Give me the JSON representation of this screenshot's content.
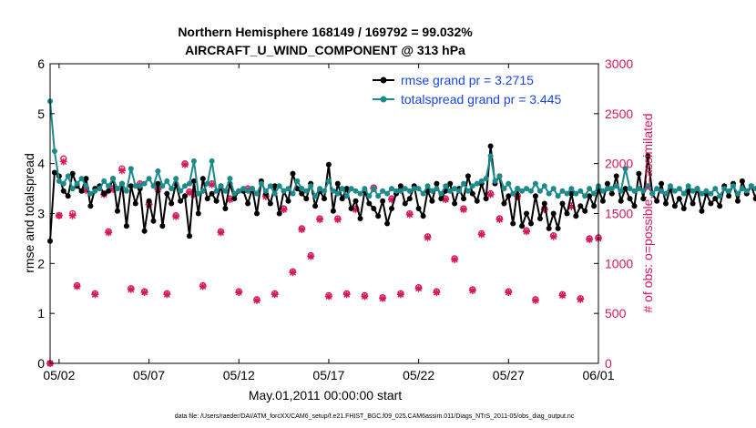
{
  "chart_data": {
    "type": "line",
    "title_line1": "Northern Hemisphere 168149 / 169792 = 99.032%",
    "title_line2": "AIRCRAFT_U_WIND_COMPONENT @ 313 hPa",
    "xlabel": "May.01,2011 00:00:00 start",
    "ylabel_left": "rmse and totalspread",
    "ylabel_right": "# of obs: o=possible; ×=assimilated",
    "footnote": "data file: /Users/raeder/DAI/ATM_forcXX/CAM6_setup/f.e21.FHIST_BGC.f09_025.CAM6assim.011/Diags_NTrS_2011-05/obs_diag_output.nc",
    "x_ticks": [
      "05/02",
      "05/07",
      "05/12",
      "05/17",
      "05/22",
      "05/27",
      "06/01"
    ],
    "x_tick_days": [
      1,
      6,
      11,
      16,
      21,
      26,
      31
    ],
    "xlim_days": [
      0.5,
      31.0
    ],
    "ylim_left": [
      0,
      6
    ],
    "yticks_left": [
      "0",
      "1",
      "2",
      "3",
      "4",
      "5",
      "6"
    ],
    "ylim_right": [
      0,
      3000
    ],
    "yticks_right": [
      "0",
      "500",
      "1000",
      "1500",
      "2000",
      "2500",
      "3000"
    ],
    "step_days": 0.25,
    "legend_position": "top-right",
    "colors": {
      "rmse": "#000000",
      "spread": "#1b8a8a",
      "obs": "#d6185b",
      "legend_text": "#1746e0"
    },
    "series": [
      {
        "name": "rmse grand pr = 3.2715",
        "values": [
          2.45,
          3.82,
          3.75,
          3.45,
          3.35,
          3.8,
          3.55,
          3.45,
          3.7,
          3.15,
          3.5,
          3.55,
          3.4,
          3.45,
          3.7,
          3.05,
          3.6,
          2.75,
          3.55,
          3.2,
          3.5,
          2.65,
          3.25,
          2.85,
          3.6,
          2.75,
          3.4,
          3.2,
          3.6,
          3.25,
          3.35,
          2.55,
          3.65,
          3.0,
          3.7,
          3.3,
          3.4,
          3.25,
          3.55,
          3.1,
          3.6,
          3.3,
          3.45,
          3.45,
          3.2,
          3.5,
          3.0,
          3.65,
          3.4,
          3.2,
          3.55,
          3.0,
          3.45,
          3.25,
          3.8,
          3.5,
          3.4,
          3.3,
          3.6,
          3.15,
          3.45,
          3.3,
          3.98,
          3.05,
          3.6,
          3.3,
          3.5,
          3.1,
          3.25,
          2.9,
          3.45,
          3.2,
          3.1,
          2.95,
          3.25,
          2.8,
          3.1,
          3.4,
          3.55,
          3.2,
          3.3,
          3.55,
          3.1,
          2.95,
          3.45,
          3.25,
          3.6,
          3.3,
          3.45,
          3.6,
          3.2,
          3.5,
          3.3,
          3.75,
          3.4,
          3.25,
          3.6,
          3.3,
          4.35,
          3.6,
          3.75,
          3.2,
          3.35,
          2.8,
          3.5,
          2.75,
          3.0,
          2.8,
          3.35,
          2.9,
          3.2,
          2.7,
          3.0,
          2.7,
          3.2,
          3.0,
          3.4,
          2.95,
          3.15,
          3.05,
          3.35,
          3.15,
          3.5,
          3.25,
          3.6,
          3.4,
          3.75,
          3.25,
          3.5,
          3.3,
          3.15,
          3.8,
          3.3,
          4.15,
          3.4,
          3.25,
          3.6,
          3.2,
          3.5,
          3.15,
          3.3,
          3.1,
          3.45,
          3.2,
          3.5,
          3.05,
          3.4,
          3.2,
          3.3,
          3.15,
          3.55,
          3.35,
          3.6,
          3.25,
          3.65,
          3.4,
          3.55,
          3.3,
          3.7,
          3.4,
          3.6,
          3.2,
          3.5,
          3.6,
          3.7,
          3.35,
          4.12,
          3.45,
          3.9,
          3.25,
          3.6,
          3.35,
          3.8,
          3.3,
          3.7,
          3.4,
          3.55,
          3.2,
          3.6,
          3.35,
          3.85,
          3.3,
          3.45,
          3.35,
          3.4
        ]
      },
      {
        "name": "totalspread grand pr = 3.445",
        "values": [
          5.25,
          4.25,
          3.65,
          3.6,
          3.75,
          3.5,
          3.6,
          3.7,
          3.55,
          3.4,
          3.45,
          3.5,
          3.65,
          3.55,
          3.7,
          3.5,
          3.6,
          3.45,
          3.9,
          3.55,
          3.55,
          3.6,
          3.7,
          3.55,
          3.85,
          3.55,
          3.65,
          3.5,
          3.7,
          3.45,
          3.55,
          3.6,
          4.05,
          3.4,
          3.45,
          3.6,
          4.05,
          3.45,
          3.55,
          3.45,
          3.7,
          3.4,
          3.45,
          3.5,
          3.45,
          3.5,
          3.4,
          3.6,
          3.45,
          3.55,
          3.4,
          3.55,
          3.45,
          3.5,
          3.4,
          3.65,
          3.5,
          3.45,
          3.55,
          3.35,
          3.5,
          3.45,
          3.65,
          3.45,
          3.4,
          3.5,
          3.35,
          3.5,
          3.45,
          3.4,
          3.5,
          3.35,
          3.5,
          3.35,
          3.45,
          3.4,
          3.5,
          3.45,
          3.45,
          3.5,
          3.45,
          3.5,
          3.5,
          3.4,
          3.55,
          3.45,
          3.5,
          3.4,
          3.55,
          3.45,
          3.5,
          3.45,
          3.6,
          3.45,
          3.55,
          3.6,
          3.65,
          3.7,
          4.15,
          3.65,
          3.75,
          3.5,
          3.6,
          3.4,
          3.5,
          3.45,
          3.5,
          3.45,
          3.6,
          3.45,
          3.55,
          3.4,
          3.5,
          3.35,
          3.45,
          3.4,
          3.5,
          3.4,
          3.45,
          3.35,
          3.5,
          3.4,
          3.55,
          3.45,
          3.5,
          3.5,
          3.55,
          3.45,
          3.9,
          3.5,
          3.45,
          3.5,
          3.45,
          3.55,
          3.4,
          3.5,
          3.45,
          3.4,
          3.55,
          3.45,
          3.5,
          3.4,
          3.55,
          3.45,
          3.5,
          3.4,
          3.45,
          3.4,
          3.5,
          3.35,
          3.5,
          3.45,
          3.55,
          3.4,
          3.5,
          3.45,
          3.55,
          3.5,
          3.6,
          3.45,
          3.55,
          3.6,
          3.65,
          3.5,
          3.7,
          3.6,
          3.75,
          3.55,
          3.65,
          3.5,
          3.65,
          3.5,
          3.55,
          3.45,
          4.05,
          3.5,
          3.6,
          3.5,
          3.65,
          3.45,
          3.95,
          3.55,
          3.6,
          3.4,
          3.45
        ]
      }
    ],
    "obs_markers_day": [
      0.5,
      1.0,
      1.25,
      1.75,
      2.0,
      2.5,
      3.0,
      3.5,
      3.75,
      4.0,
      4.5,
      5.0,
      5.5,
      5.75,
      6.0,
      6.5,
      7.0,
      7.5,
      8.0,
      8.25,
      8.5,
      9.0,
      9.5,
      10.0,
      10.5,
      11.0,
      11.5,
      12.0,
      12.5,
      13.0,
      13.5,
      14.0,
      14.5,
      15.0,
      15.5,
      16.0,
      16.5,
      17.0,
      17.5,
      18.0,
      18.5,
      19.0,
      19.5,
      20.0,
      20.5,
      21.0,
      21.5,
      22.0,
      22.5,
      23.0,
      23.5,
      24.0,
      24.5,
      25.0,
      25.5,
      26.0,
      26.5,
      27.0,
      27.5,
      28.0,
      28.5,
      29.0,
      29.5,
      30.0,
      30.5,
      31.0
    ],
    "obs_possible": [
      0,
      1480,
      2050,
      1500,
      780,
      1750,
      700,
      1700,
      1320,
      1750,
      1950,
      750,
      1800,
      720,
      1600,
      1750,
      700,
      1480,
      2000,
      1720,
      1700,
      780,
      1800,
      1320,
      1650,
      720,
      1750,
      640,
      1680,
      700,
      1550,
      920,
      1350,
      1080,
      1450,
      680,
      1450,
      700,
      1550,
      680,
      1760,
      660,
      1650,
      700,
      1500,
      760,
      1270,
      720,
      1650,
      1050,
      1550,
      740,
      1300,
      1700,
      1450,
      720,
      1680,
      1330,
      640,
      1550,
      1280,
      690,
      1580,
      650,
      1250,
      1260
    ],
    "obs_assimilated": [
      0,
      1480,
      2020,
      1480,
      770,
      1730,
      690,
      1690,
      1310,
      1740,
      1930,
      740,
      1790,
      710,
      1590,
      1740,
      690,
      1470,
      1990,
      1710,
      1690,
      770,
      1790,
      1310,
      1640,
      710,
      1740,
      630,
      1670,
      690,
      1540,
      910,
      1340,
      1070,
      1440,
      670,
      1440,
      690,
      1540,
      670,
      1750,
      650,
      1640,
      690,
      1490,
      750,
      1260,
      710,
      1640,
      1040,
      1540,
      730,
      1290,
      1690,
      1440,
      710,
      1670,
      1320,
      630,
      1540,
      1270,
      680,
      1570,
      640,
      1240,
      1250
    ]
  }
}
